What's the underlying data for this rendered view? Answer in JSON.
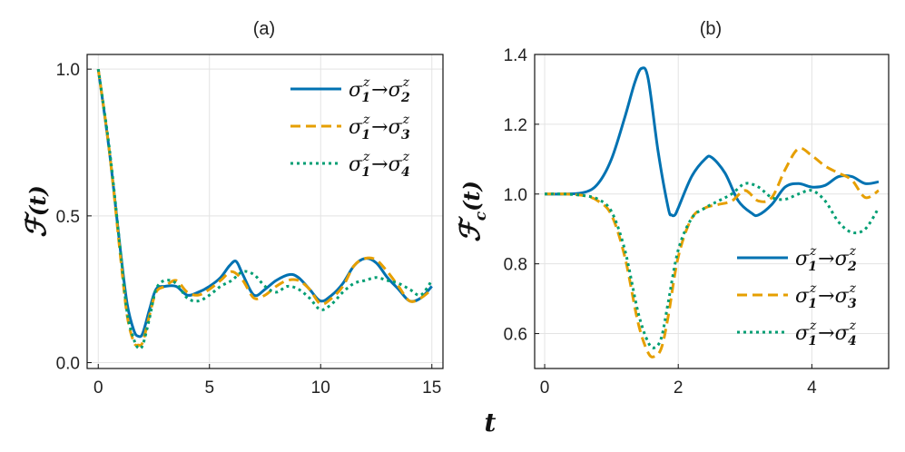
{
  "colors": {
    "s2": "#0072B2",
    "s3": "#E69F00",
    "s4": "#009E73"
  },
  "shared_xlabel": "t",
  "chart_data": [
    {
      "id": "a",
      "type": "line",
      "title": "(a)",
      "ylabel_main": "ℱ",
      "ylabel_sub": "",
      "ylabel_suffix": "(t)",
      "xlim": [
        -0.5,
        15.5
      ],
      "ylim": [
        -0.02,
        1.05
      ],
      "xticks": [
        0,
        5,
        10,
        15
      ],
      "xtick_labels": [
        "0",
        "5",
        "10",
        "15"
      ],
      "yticks": [
        0.0,
        0.5,
        1.0
      ],
      "ytick_labels": [
        "0.0",
        "0.5",
        "1.0"
      ],
      "legend_position": "top-right",
      "series": [
        {
          "key": "s2",
          "name": "σ₁ᶻ→σ₂ᶻ",
          "legend": {
            "a": "σ",
            "as": "1",
            "b": "σ",
            "bs": "2"
          },
          "style": "solid",
          "x": [
            0,
            0.5,
            1,
            1.3,
            1.6,
            1.8,
            2.0,
            2.3,
            2.6,
            3.0,
            3.5,
            4.0,
            4.5,
            5.0,
            5.5,
            5.9,
            6.2,
            6.5,
            7.0,
            7.5,
            8.0,
            8.6,
            9.0,
            9.5,
            10.0,
            10.5,
            11.0,
            11.5,
            12.0,
            12.5,
            13.0,
            13.5,
            14.0,
            14.5,
            15.0
          ],
          "y": [
            1.0,
            0.72,
            0.38,
            0.2,
            0.11,
            0.09,
            0.1,
            0.18,
            0.25,
            0.26,
            0.26,
            0.23,
            0.24,
            0.26,
            0.29,
            0.33,
            0.345,
            0.3,
            0.23,
            0.25,
            0.28,
            0.3,
            0.29,
            0.25,
            0.21,
            0.23,
            0.27,
            0.33,
            0.355,
            0.34,
            0.29,
            0.25,
            0.21,
            0.22,
            0.26
          ]
        },
        {
          "key": "s3",
          "name": "σ₁ᶻ→σ₃ᶻ",
          "legend": {
            "a": "σ",
            "as": "1",
            "b": "σ",
            "bs": "3"
          },
          "style": "dashed",
          "x": [
            0,
            0.5,
            1,
            1.3,
            1.6,
            1.8,
            2.0,
            2.3,
            2.6,
            3.0,
            3.5,
            4.0,
            4.5,
            5.0,
            5.5,
            6.0,
            6.5,
            7.0,
            7.5,
            8.0,
            8.5,
            9.0,
            9.5,
            10.0,
            10.5,
            11.0,
            11.5,
            12.0,
            12.5,
            13.0,
            13.5,
            14.0,
            14.5,
            15.0
          ],
          "y": [
            1.0,
            0.72,
            0.36,
            0.16,
            0.07,
            0.06,
            0.07,
            0.16,
            0.24,
            0.26,
            0.28,
            0.24,
            0.23,
            0.25,
            0.28,
            0.31,
            0.28,
            0.22,
            0.23,
            0.26,
            0.28,
            0.28,
            0.25,
            0.2,
            0.22,
            0.26,
            0.33,
            0.355,
            0.35,
            0.31,
            0.26,
            0.21,
            0.22,
            0.25
          ]
        },
        {
          "key": "s4",
          "name": "σ₁ᶻ→σ₄ᶻ",
          "legend": {
            "a": "σ",
            "as": "1",
            "b": "σ",
            "bs": "4"
          },
          "style": "dotted",
          "x": [
            0,
            0.5,
            1,
            1.3,
            1.6,
            1.8,
            2.0,
            2.3,
            2.6,
            3.0,
            3.5,
            4.0,
            4.5,
            5.0,
            5.5,
            6.0,
            6.5,
            7.0,
            7.5,
            8.0,
            8.5,
            9.0,
            9.5,
            10.0,
            10.5,
            11.0,
            11.5,
            12.0,
            12.5,
            13.0,
            13.5,
            14.0,
            14.5,
            15.0
          ],
          "y": [
            1.0,
            0.73,
            0.38,
            0.17,
            0.08,
            0.05,
            0.06,
            0.15,
            0.25,
            0.28,
            0.27,
            0.22,
            0.21,
            0.23,
            0.26,
            0.28,
            0.31,
            0.3,
            0.26,
            0.24,
            0.26,
            0.25,
            0.22,
            0.18,
            0.2,
            0.24,
            0.27,
            0.28,
            0.29,
            0.28,
            0.27,
            0.25,
            0.23,
            0.28
          ]
        }
      ]
    },
    {
      "id": "b",
      "type": "line",
      "title": "(b)",
      "ylabel_main": "ℱ",
      "ylabel_sub": "c",
      "ylabel_suffix": "(t)",
      "xlim": [
        -0.15,
        5.15
      ],
      "ylim": [
        0.5,
        1.4
      ],
      "xticks": [
        0,
        2,
        4
      ],
      "xtick_labels": [
        "0",
        "2",
        "4"
      ],
      "yticks": [
        0.6,
        0.8,
        1.0,
        1.2,
        1.4
      ],
      "ytick_labels": [
        "0.6",
        "0.8",
        "1.0",
        "1.2",
        "1.4"
      ],
      "legend_position": "bottom-right",
      "series": [
        {
          "key": "s2",
          "name": "σ₁ᶻ→σ₂ᶻ",
          "legend": {
            "a": "σ",
            "as": "1",
            "b": "σ",
            "bs": "2"
          },
          "style": "solid",
          "x": [
            0,
            0.3,
            0.6,
            0.8,
            1.0,
            1.2,
            1.35,
            1.45,
            1.55,
            1.7,
            1.85,
            1.9,
            1.95,
            2.0,
            2.2,
            2.4,
            2.5,
            2.7,
            2.9,
            3.1,
            3.2,
            3.4,
            3.6,
            3.8,
            4.0,
            4.2,
            4.4,
            4.6,
            4.8,
            5.0
          ],
          "y": [
            1.0,
            1.0,
            1.005,
            1.03,
            1.1,
            1.22,
            1.32,
            1.36,
            1.33,
            1.12,
            0.96,
            0.94,
            0.94,
            0.96,
            1.05,
            1.1,
            1.105,
            1.06,
            0.98,
            0.945,
            0.94,
            0.97,
            1.02,
            1.03,
            1.02,
            1.025,
            1.05,
            1.05,
            1.03,
            1.035
          ]
        },
        {
          "key": "s3",
          "name": "σ₁ᶻ→σ₃ᶻ",
          "legend": {
            "a": "σ",
            "as": "1",
            "b": "σ",
            "bs": "3"
          },
          "style": "dashed",
          "x": [
            0,
            0.3,
            0.6,
            0.8,
            1.0,
            1.2,
            1.4,
            1.55,
            1.65,
            1.75,
            1.85,
            2.0,
            2.2,
            2.4,
            2.6,
            2.8,
            3.0,
            3.2,
            3.4,
            3.6,
            3.8,
            4.0,
            4.2,
            4.4,
            4.6,
            4.8,
            5.0
          ],
          "y": [
            1.0,
            1.0,
            0.995,
            0.98,
            0.94,
            0.82,
            0.63,
            0.545,
            0.535,
            0.56,
            0.65,
            0.82,
            0.93,
            0.96,
            0.97,
            0.98,
            1.01,
            0.98,
            0.99,
            1.07,
            1.13,
            1.11,
            1.08,
            1.06,
            1.04,
            0.99,
            1.01
          ]
        },
        {
          "key": "s4",
          "name": "σ₁ᶻ→σ₄ᶻ",
          "legend": {
            "a": "σ",
            "as": "1",
            "b": "σ",
            "bs": "4"
          },
          "style": "dotted",
          "x": [
            0,
            0.3,
            0.6,
            0.8,
            1.0,
            1.2,
            1.4,
            1.55,
            1.65,
            1.75,
            1.85,
            2.0,
            2.2,
            2.4,
            2.6,
            2.8,
            3.0,
            3.2,
            3.4,
            3.6,
            3.8,
            4.0,
            4.2,
            4.4,
            4.6,
            4.8,
            5.0
          ],
          "y": [
            1.0,
            1.0,
            0.995,
            0.985,
            0.95,
            0.84,
            0.66,
            0.575,
            0.56,
            0.59,
            0.69,
            0.84,
            0.93,
            0.96,
            0.98,
            1.0,
            1.03,
            1.02,
            0.99,
            0.985,
            1.0,
            1.01,
            0.98,
            0.92,
            0.89,
            0.9,
            0.96
          ]
        }
      ]
    }
  ]
}
